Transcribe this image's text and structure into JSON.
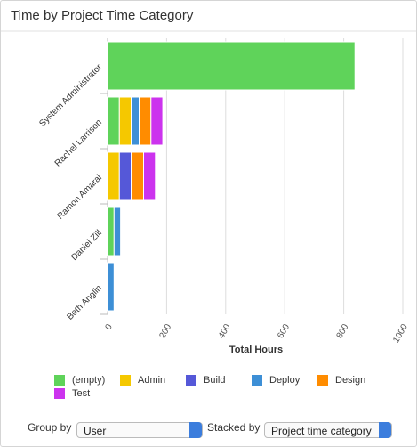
{
  "chart_data": {
    "type": "stacked-barh",
    "title": "Time by Project Time Category",
    "categories": [
      "System Administrator",
      "Rachel Larrison",
      "Ramon Amaral",
      "Daniel Zill",
      "Beth Anglin"
    ],
    "series": [
      {
        "name": "(empty)",
        "color": "#5fd35a",
        "values": [
          838,
          40,
          0,
          22,
          0
        ]
      },
      {
        "name": "Admin",
        "color": "#f5c800",
        "values": [
          0,
          40,
          40,
          0,
          0
        ]
      },
      {
        "name": "Build",
        "color": "#5558d8",
        "values": [
          0,
          0,
          40,
          0,
          0
        ]
      },
      {
        "name": "Deploy",
        "color": "#3d8fd6",
        "values": [
          0,
          27,
          0,
          22,
          22
        ]
      },
      {
        "name": "Design",
        "color": "#ff8c00",
        "values": [
          0,
          40,
          42,
          0,
          0
        ]
      },
      {
        "name": "Test",
        "color": "#cc33ee",
        "values": [
          0,
          40,
          40,
          0,
          0
        ]
      }
    ],
    "xlabel": "Total Hours",
    "xlim": [
      0,
      1000
    ],
    "xticks": [
      0,
      200,
      400,
      600,
      800,
      1000
    ],
    "grid": true
  },
  "controls": {
    "group_by": {
      "label": "Group by",
      "value": "User"
    },
    "stacked_by": {
      "label": "Stacked by",
      "value": "Project time category"
    }
  }
}
